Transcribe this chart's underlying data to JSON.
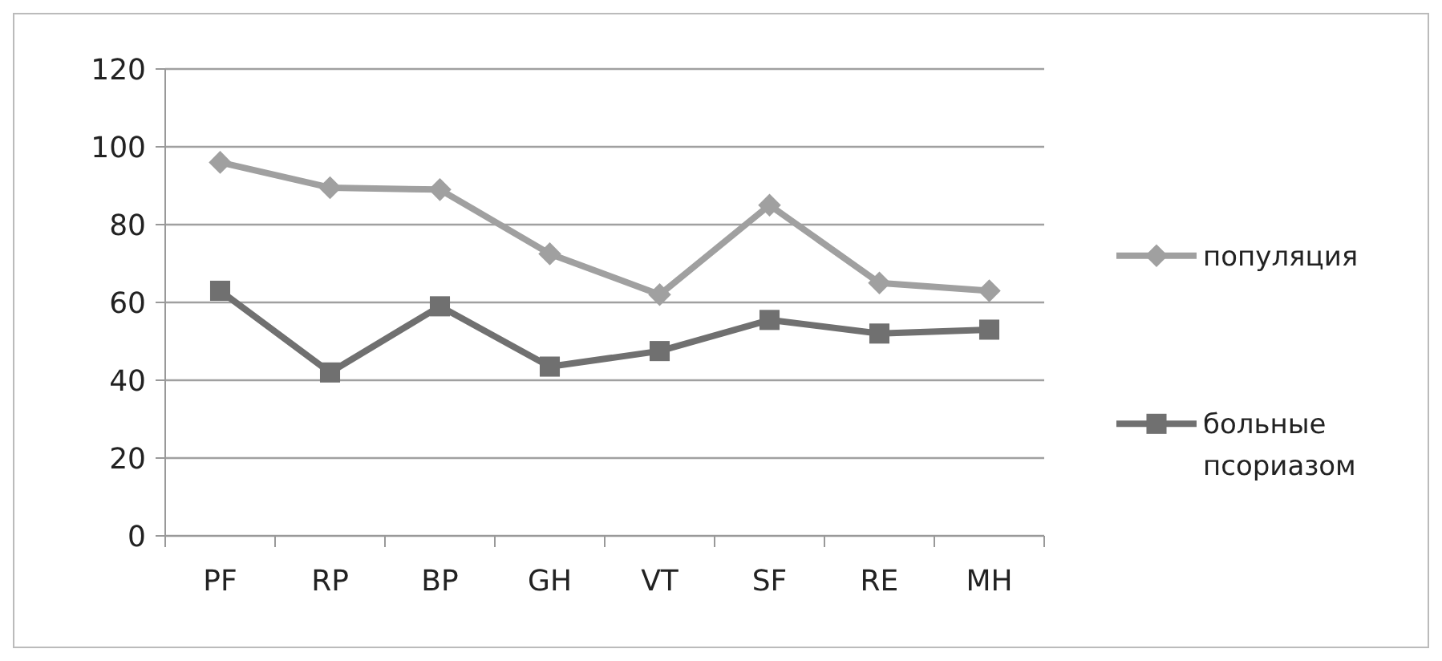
{
  "chart_data": {
    "type": "line",
    "categories": [
      "PF",
      "RP",
      "BP",
      "GH",
      "VT",
      "SF",
      "RE",
      "MH"
    ],
    "series": [
      {
        "name": "популяция",
        "color": "#a0a0a0",
        "marker": "diamond",
        "values": [
          96,
          89.5,
          89,
          72.5,
          62,
          85,
          65,
          63
        ]
      },
      {
        "name": "больные псориазом",
        "color": "#707070",
        "marker": "square",
        "values": [
          63,
          42,
          59,
          43.5,
          47.5,
          55.5,
          52,
          53
        ]
      }
    ],
    "ylim": [
      0,
      120
    ],
    "yticks": [
      0,
      20,
      40,
      60,
      80,
      100,
      120
    ],
    "grid": "y",
    "legend": "right"
  }
}
